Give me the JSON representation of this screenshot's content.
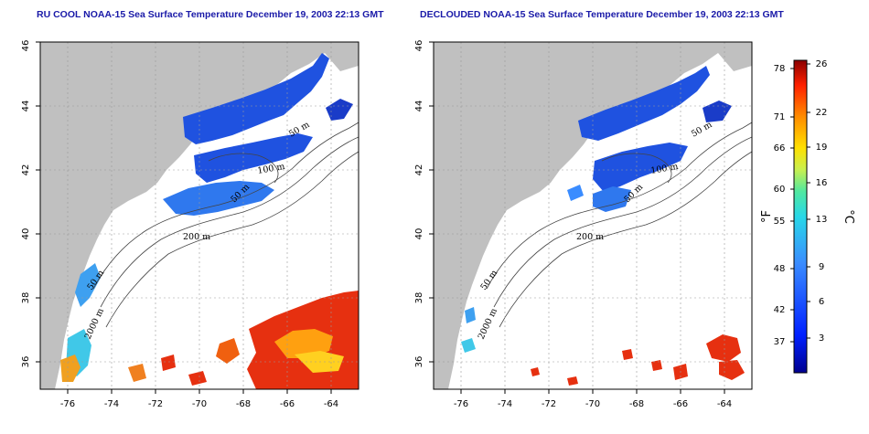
{
  "panels": [
    {
      "title": "RU COOL NOAA-15 Sea Surface Temperature December 19, 2003 22:13 GMT",
      "x_ticks": [
        "-76",
        "-74",
        "-72",
        "-70",
        "-68",
        "-66",
        "-64"
      ],
      "y_ticks": [
        "36",
        "38",
        "40",
        "42",
        "44",
        "46"
      ],
      "contour_labels": [
        "50 m",
        "100 m",
        "50 m",
        "200 m",
        "50 m",
        "2000 m"
      ]
    },
    {
      "title": "DECLOUDED NOAA-15 Sea Surface Temperature December 19, 2003 22:13 GMT",
      "x_ticks": [
        "-76",
        "-74",
        "-72",
        "-70",
        "-68",
        "-66",
        "-64"
      ],
      "y_ticks": [
        "36",
        "38",
        "40",
        "42",
        "44",
        "46"
      ],
      "contour_labels": [
        "50 m",
        "100 m",
        "50 m",
        "200 m",
        "50 m",
        "2000 m"
      ]
    }
  ],
  "colorbar": {
    "fahrenheit_ticks": [
      "78",
      "71",
      "66",
      "60",
      "55",
      "48",
      "42",
      "37"
    ],
    "celsius_ticks": [
      "26",
      "22",
      "19",
      "16",
      "13",
      "9",
      "6",
      "3"
    ],
    "fahrenheit_unit": "°F",
    "celsius_unit": "°C"
  },
  "colors": {
    "land": "#c0c0c0",
    "title": "#1a1aa8",
    "grid": "#9a9a9a",
    "contour": "#444444",
    "cold": "#1f52e0",
    "warm": "#e63010"
  }
}
